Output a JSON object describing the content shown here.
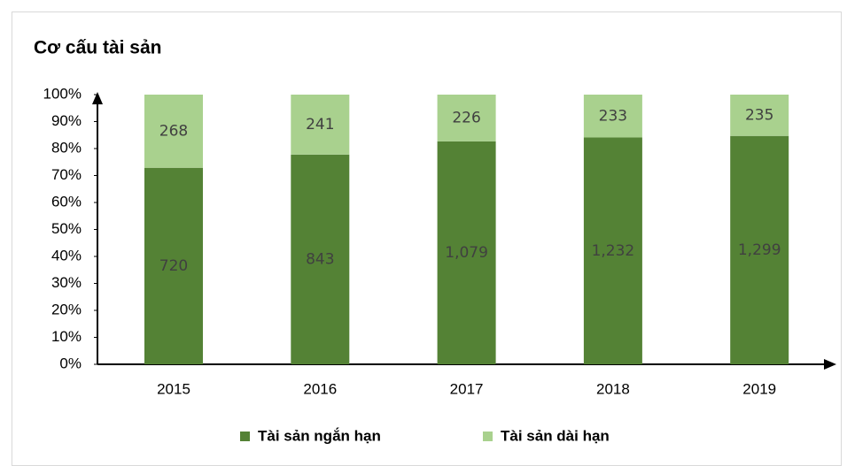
{
  "chart_data": {
    "type": "bar",
    "stacking": "percent",
    "title": "Cơ cấu tài sản",
    "categories": [
      "2015",
      "2016",
      "2017",
      "2018",
      "2019"
    ],
    "series": [
      {
        "name": "Tài sản ngắn hạn",
        "color": "#548235",
        "values": [
          720,
          843,
          1079,
          1232,
          1299
        ],
        "value_labels": [
          "720",
          "843",
          "1,079",
          "1,232",
          "1,299"
        ]
      },
      {
        "name": "Tài sản dài hạn",
        "color": "#a9d18e",
        "values": [
          268,
          241,
          226,
          233,
          235
        ]
      }
    ],
    "ylim": [
      0,
      100
    ],
    "yticks": [
      {
        "value": 0,
        "label": "0%"
      },
      {
        "value": 10,
        "label": "10%"
      },
      {
        "value": 20,
        "label": "20%"
      },
      {
        "value": 30,
        "label": "30%"
      },
      {
        "value": 40,
        "label": "40%"
      },
      {
        "value": 50,
        "label": "50%"
      },
      {
        "value": 60,
        "label": "60%"
      },
      {
        "value": 70,
        "label": "70%"
      },
      {
        "value": 80,
        "label": "80%"
      },
      {
        "value": 90,
        "label": "90%"
      },
      {
        "value": 100,
        "label": "100%"
      }
    ],
    "grid": false,
    "legend": "bottom"
  }
}
